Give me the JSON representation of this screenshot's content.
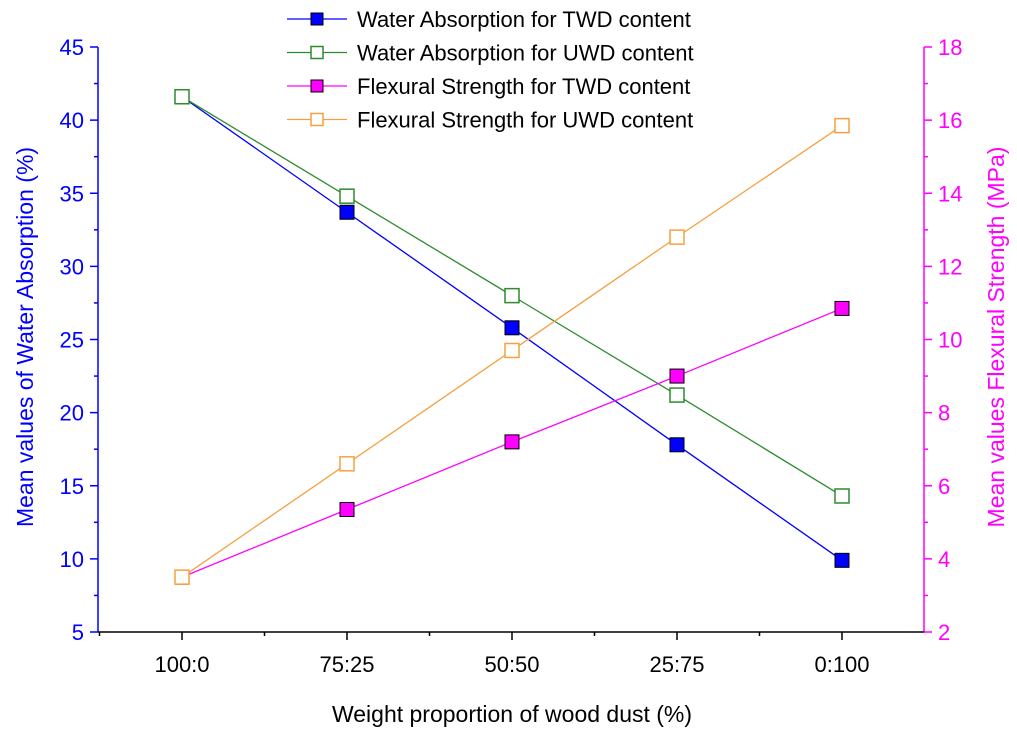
{
  "chart_data": {
    "type": "line",
    "categories": [
      "100:0",
      "75:25",
      "50:50",
      "25:75",
      "0:100"
    ],
    "xlabel": "Weight proportion of wood dust (%)",
    "ylabel": "Mean values of Water Absorption (%)",
    "y2label": "Mean values Flexural Strength (MPa)",
    "ylim": [
      5,
      45
    ],
    "y2lim": [
      2,
      18
    ],
    "yticks": [
      "5",
      "10",
      "15",
      "20",
      "25",
      "30",
      "35",
      "40",
      "45"
    ],
    "y2ticks": [
      "2",
      "4",
      "6",
      "8",
      "10",
      "12",
      "14",
      "16",
      "18"
    ],
    "grid": false,
    "legend_position": "top-center",
    "colors": {
      "left_axis": "#0000FF",
      "right_axis": "#FF00FF"
    },
    "series": [
      {
        "name": "Water Absorption for TWD content",
        "axis": "left",
        "color": "#0000FF",
        "marker": "filled-square",
        "values": [
          41.6,
          33.7,
          25.8,
          17.8,
          9.9
        ]
      },
      {
        "name": "Water Absorption for UWD content",
        "axis": "left",
        "color": "#2E8B2E",
        "marker": "open-square",
        "values": [
          41.6,
          34.8,
          28.0,
          21.2,
          14.3
        ]
      },
      {
        "name": "Flexural Strength for TWD content",
        "axis": "right",
        "color": "#FF00FF",
        "marker": "filled-square",
        "values": [
          3.5,
          5.35,
          7.2,
          9.0,
          10.85
        ]
      },
      {
        "name": "Flexural Strength for UWD content",
        "axis": "right",
        "color": "#F5A040",
        "marker": "open-square",
        "values": [
          3.5,
          6.6,
          9.7,
          12.8,
          15.85
        ]
      }
    ]
  }
}
